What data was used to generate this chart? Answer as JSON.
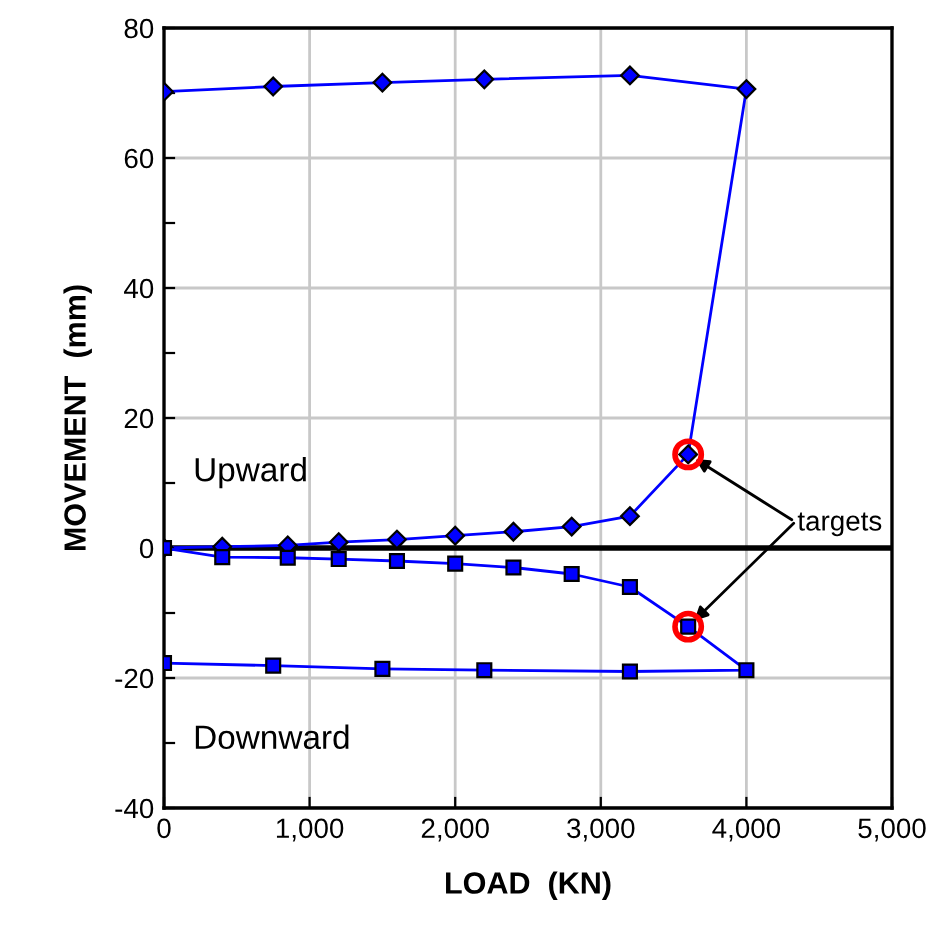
{
  "chart_data": {
    "type": "line",
    "xlabel": "LOAD  (KN)",
    "ylabel": "MOVEMENT  (mm)",
    "xlim": [
      0,
      5000
    ],
    "xticks": [
      {
        "value": 0,
        "label": "0"
      },
      {
        "value": 1000,
        "label": "1,000"
      },
      {
        "value": 2000,
        "label": "2,000"
      },
      {
        "value": 3000,
        "label": "3,000"
      },
      {
        "value": 4000,
        "label": "4,000"
      },
      {
        "value": 5000,
        "label": "5,000"
      }
    ],
    "ylim": [
      -40,
      80
    ],
    "yticks": [
      -40,
      {
        "value": -30,
        "label": null
      },
      -20,
      {
        "value": -10,
        "label": null
      },
      0,
      {
        "value": 10,
        "label": null
      },
      20,
      {
        "value": 30,
        "label": null
      },
      40,
      {
        "value": 50,
        "label": null
      },
      60,
      {
        "value": 70,
        "label": null
      },
      80
    ],
    "grid": true,
    "legend": false,
    "series": [
      {
        "color": "#0000ff",
        "marker": "diamond",
        "x": [
          0,
          400,
          850,
          1200,
          1600,
          2000,
          2400,
          2800,
          3200,
          3600,
          4000,
          3200,
          2200,
          1500,
          750,
          0
        ],
        "values": [
          0,
          0.2,
          0.4,
          0.9,
          1.3,
          1.9,
          2.5,
          3.3,
          4.9,
          14.4,
          70.6,
          72.7,
          72.1,
          71.6,
          71.0,
          70.2
        ]
      },
      {
        "color": "#0000ff",
        "marker": "square",
        "x": [
          0,
          400,
          850,
          1200,
          1600,
          2000,
          2400,
          2800,
          3200,
          3600,
          4000,
          3200,
          2200,
          1500,
          750,
          0
        ],
        "values": [
          0,
          -1.4,
          -1.5,
          -1.7,
          -2.0,
          -2.4,
          -3.0,
          -4.0,
          -6.0,
          -12.1,
          -18.8,
          -19.0,
          -18.8,
          -18.6,
          -18.1,
          -17.7
        ]
      },
      {
        "type": "scatter",
        "color": "#ff0000",
        "marker": "circle",
        "x": [
          3600,
          3600
        ],
        "values": [
          14.4,
          -12.1
        ]
      }
    ],
    "ref_lines": [
      {
        "axis": "y",
        "value": 0,
        "color": "#000000"
      }
    ],
    "annotations": [
      {
        "text": "targets",
        "x": 3600,
        "y": 14.4
      },
      "Upward",
      "Downward"
    ]
  }
}
